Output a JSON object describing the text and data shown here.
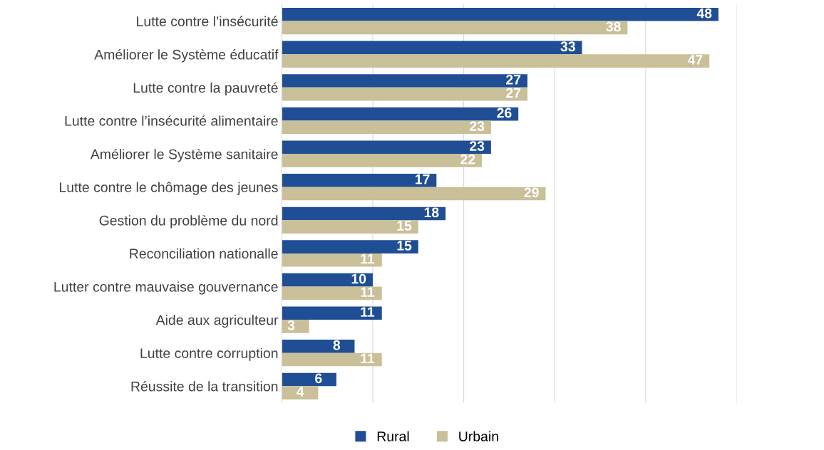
{
  "chart_data": {
    "type": "bar",
    "orientation": "horizontal",
    "categories": [
      "Lutte contre l’insécurité",
      "Améliorer le Système éducatif",
      "Lutte contre la pauvreté",
      "Lutte contre l’insécurité alimentaire",
      "Améliorer le Système sanitaire",
      "Lutte contre le chômage des jeunes",
      "Gestion du problème du nord",
      "Reconciliation nationalle",
      "Lutter contre mauvaise gouvernance",
      "Aide aux agriculteur",
      "Lutte contre corruption",
      "Réussite de la transition"
    ],
    "series": [
      {
        "name": "Rural",
        "color": "#1f4e94",
        "values": [
          48,
          33,
          27,
          26,
          23,
          17,
          18,
          15,
          10,
          11,
          8,
          6
        ]
      },
      {
        "name": "Urbain",
        "color": "#c9bf99",
        "values": [
          38,
          47,
          27,
          23,
          22,
          29,
          15,
          11,
          11,
          3,
          11,
          4
        ]
      }
    ],
    "xlim": [
      0,
      50
    ],
    "xticks": [
      {
        "value": 0,
        "label": null
      },
      {
        "value": 10,
        "label": null
      },
      {
        "value": 20,
        "label": null
      },
      {
        "value": 30,
        "label": null
      },
      {
        "value": 40,
        "label": null
      },
      {
        "value": 50,
        "label": null
      }
    ],
    "tick_labels": "y",
    "grid": "x",
    "legend": "bottom",
    "data_labels": true
  }
}
